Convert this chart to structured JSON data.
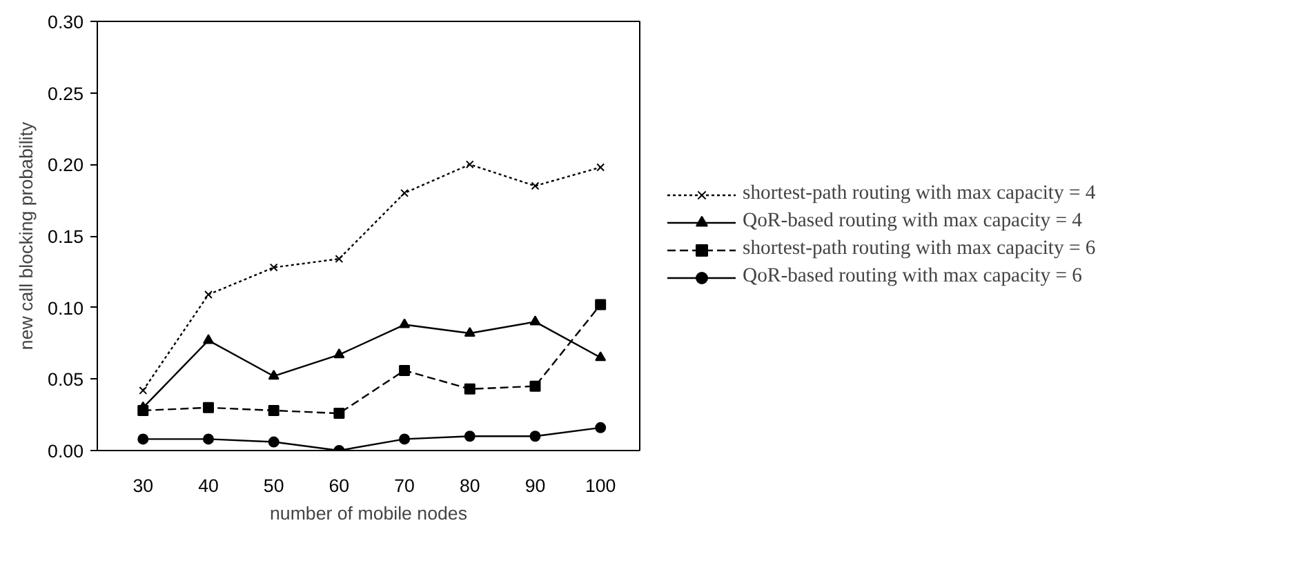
{
  "chart_data": {
    "type": "line",
    "xlabel": "number of mobile nodes",
    "ylabel": "new call blocking probability",
    "categories": [
      "30",
      "40",
      "50",
      "60",
      "70",
      "80",
      "90",
      "100"
    ],
    "ylim": [
      0,
      0.3
    ],
    "yticks": [
      {
        "value": 0,
        "label": "0.00"
      },
      {
        "value": 0.05,
        "label": "0.05"
      },
      {
        "value": 0.1,
        "label": "0.10"
      },
      {
        "value": 0.15,
        "label": "0.15"
      },
      {
        "value": 0.2,
        "label": "0.20"
      },
      {
        "value": 0.25,
        "label": "0.25"
      },
      {
        "value": 0.3,
        "label": "0.30"
      }
    ],
    "grid": false,
    "legend": "right",
    "series": [
      {
        "name": "shortest-path routing with max capacity = 4",
        "color": "#000000",
        "marker": "cross",
        "line_style": "dotted",
        "values": [
          0.042,
          0.109,
          0.128,
          0.134,
          0.18,
          0.2,
          0.185,
          0.198
        ]
      },
      {
        "name": "QoR-based routing with max capacity = 4",
        "color": "#000000",
        "marker": "triangle",
        "line_style": "solid",
        "values": [
          0.03,
          0.077,
          0.052,
          0.067,
          0.088,
          0.082,
          0.09,
          0.065
        ]
      },
      {
        "name": "shortest-path routing with max capacity = 6",
        "color": "#000000",
        "marker": "square",
        "line_style": "dashed",
        "values": [
          0.028,
          0.03,
          0.028,
          0.026,
          0.056,
          0.043,
          0.045,
          0.102
        ]
      },
      {
        "name": "QoR-based routing with max capacity = 6",
        "color": "#000000",
        "marker": "circle",
        "line_style": "solid",
        "values": [
          0.008,
          0.008,
          0.006,
          0.0,
          0.008,
          0.01,
          0.01,
          0.016
        ]
      }
    ]
  }
}
